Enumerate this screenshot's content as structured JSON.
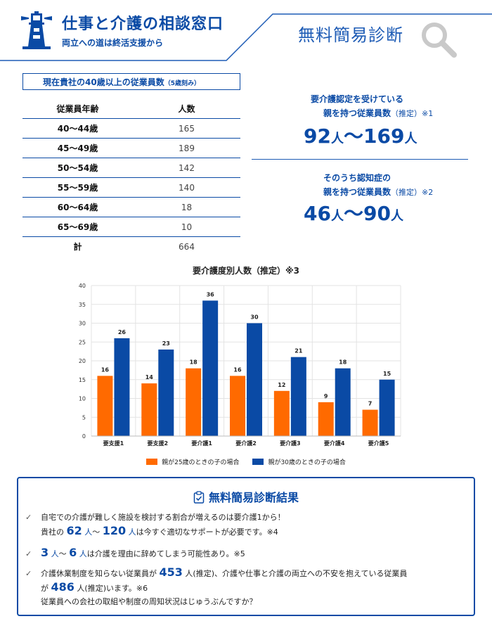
{
  "header": {
    "title": "仕事と介護の相談窓口",
    "subtitle": "両立への道は終活支援から",
    "diagnosis_title": "無料簡易診断"
  },
  "table": {
    "caption": "現在貴社の40歳以上の従業員数",
    "caption_note": "（5歳刻み）",
    "col_age": "従業員年齢",
    "col_count": "人数",
    "rows": [
      {
        "age": "40～44歳",
        "count": "165"
      },
      {
        "age": "45～49歳",
        "count": "189"
      },
      {
        "age": "50～54歳",
        "count": "142"
      },
      {
        "age": "55～59歳",
        "count": "140"
      },
      {
        "age": "60～64歳",
        "count": "18"
      },
      {
        "age": "65～69歳",
        "count": "10"
      }
    ],
    "total_label": "計",
    "total_value": "664"
  },
  "stats": {
    "stat1_line1": "要介護認定を受けている",
    "stat1_line2": "親を持つ従業員数",
    "stat1_suffix": "（推定）",
    "stat1_note": "※1",
    "stat1_from": "92",
    "stat1_to": "169",
    "stat2_line1": "そのうち認知症の",
    "stat2_line2": "親を持つ従業員数",
    "stat2_suffix": "（推定）",
    "stat2_note": "※2",
    "stat2_from": "46",
    "stat2_to": "90",
    "unit": "人",
    "tilde": "～"
  },
  "chart_data": {
    "type": "bar",
    "title": "要介護度別人数（推定）※3",
    "categories": [
      "要支援1",
      "要支援2",
      "要介護1",
      "要介護2",
      "要介護3",
      "要介護4",
      "要介護5"
    ],
    "series": [
      {
        "name": "親が25歳のときの子の場合",
        "color": "#ff6a00",
        "values": [
          16,
          14,
          18,
          16,
          12,
          9,
          7
        ]
      },
      {
        "name": "親が30歳のときの子の場合",
        "color": "#0a4aa5",
        "values": [
          26,
          23,
          36,
          30,
          21,
          18,
          15
        ]
      }
    ],
    "ylim": [
      0,
      40
    ],
    "yticks": [
      0,
      5,
      10,
      15,
      20,
      25,
      30,
      35,
      40
    ],
    "grid": true,
    "legend": "bottom",
    "data_labels": true
  },
  "result": {
    "title": "無料簡易診断結果",
    "item1_line1": "自宅での介護が難しく施設を検討する割合が増えるのは要介護1から！",
    "item1_prefix": "貴社の",
    "item1_from": "62",
    "item1_to": "120",
    "item1_suffix": "は今すぐ適切なサポートが必要です。※4",
    "item2_from": "3",
    "item2_to": "6",
    "item2_suffix": "は介護を理由に辞めてしまう可能性あり。※5",
    "item3_prefix": "介護休業制度を知らない従業員が",
    "item3_num1": "453",
    "item3_unit1": "人(推定)、介護や仕事と介護の両立への不安を抱えている従業員",
    "item3_pre2": "が",
    "item3_num2": "486",
    "item3_unit2": "人(推定)います。※6",
    "item3_line3": "従業員への会社の取組や制度の周知状況はじゅうぶんですか？",
    "unit": "人",
    "tilde": "～",
    "check_glyph": "✓"
  }
}
